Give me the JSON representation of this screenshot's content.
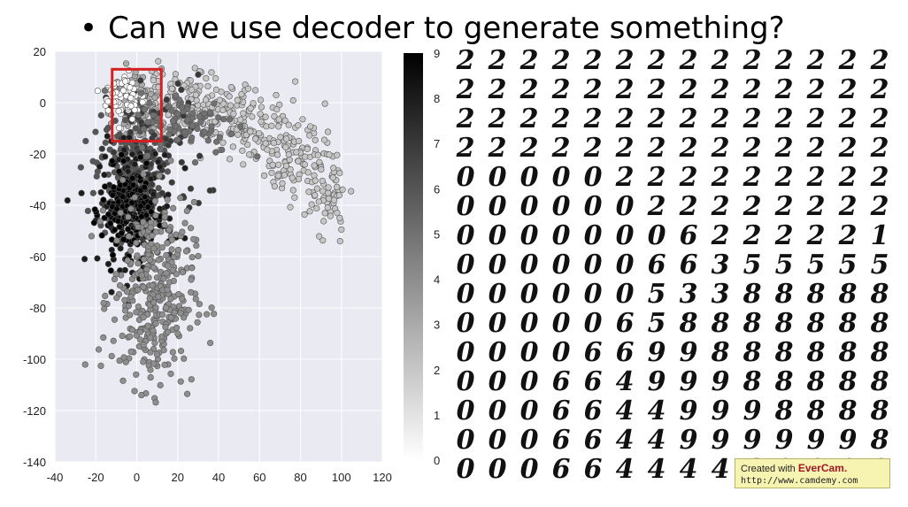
{
  "slide": {
    "bullet": "•",
    "title": "Can we use decoder to generate something?"
  },
  "chart_data": {
    "type": "scatter",
    "xlim": [
      -40,
      120
    ],
    "ylim": [
      -140,
      20
    ],
    "x_ticks": [
      -40,
      -20,
      0,
      20,
      40,
      60,
      80,
      100,
      120
    ],
    "y_ticks": [
      20,
      0,
      -20,
      -40,
      -60,
      -80,
      -100,
      -120,
      -140
    ],
    "grid": true,
    "colorbar": {
      "ticks": [
        0,
        1,
        2,
        3,
        4,
        5,
        6,
        7,
        8,
        9
      ],
      "colormap": "gray_r"
    },
    "highlight_box": {
      "x0": -12,
      "x1": 12,
      "y0": -15,
      "y1": 13,
      "color": "#d42020"
    },
    "clusters": [
      {
        "label": 2,
        "cx": 45,
        "cy": -12,
        "sx": 22,
        "sy": 9,
        "n": 420,
        "shape": "arc"
      },
      {
        "label": 3,
        "cx": 0,
        "cy": -5,
        "sx": 6,
        "sy": 9,
        "n": 150
      },
      {
        "label": 6,
        "cx": -4,
        "cy": -28,
        "sx": 8,
        "sy": 12,
        "n": 180
      },
      {
        "label": 7,
        "cx": 10,
        "cy": -20,
        "sx": 12,
        "sy": 15,
        "n": 90
      },
      {
        "label": 8,
        "cx": 0,
        "cy": -40,
        "sx": 9,
        "sy": 12,
        "n": 160
      },
      {
        "label": 9,
        "cx": -5,
        "cy": -42,
        "sx": 6,
        "sy": 8,
        "n": 180
      },
      {
        "label": 4,
        "cx": 8,
        "cy": -75,
        "sx": 10,
        "sy": 18,
        "n": 360
      },
      {
        "label": 0,
        "cx": -6,
        "cy": 2,
        "sx": 5,
        "sy": 5,
        "n": 70
      },
      {
        "label": 5,
        "cx": 25,
        "cy": -8,
        "sx": 12,
        "sy": 6,
        "n": 90
      }
    ]
  },
  "digit_grid": {
    "rows": [
      "22222222222222",
      "22222222222222",
      "22222222222222",
      "22222222222222",
      "00000222222222",
      "00000022222222",
      "00000006222221",
      "00000066355555",
      "00000053388888",
      "00000658888888",
      "00006699888888",
      "00066499988888",
      "00066449998888",
      "00066449999998",
      "00066444449999"
    ]
  },
  "watermark": {
    "line1_prefix": "Created with ",
    "brand": "EverCam.",
    "url": "http://www.camdemy.com"
  }
}
